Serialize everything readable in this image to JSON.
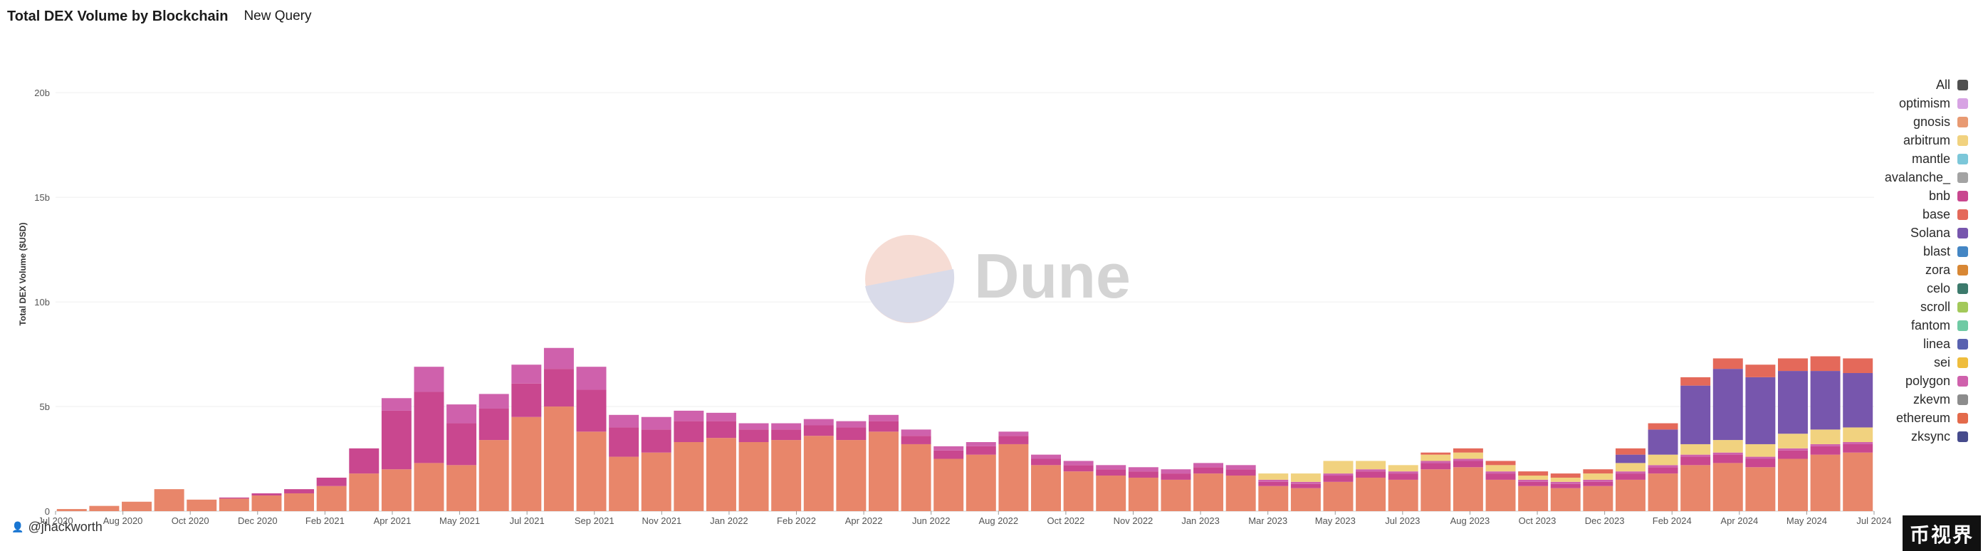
{
  "header": {
    "title": "Total DEX Volume by Blockchain",
    "query_name": "New Query"
  },
  "watermark": {
    "text": "Dune"
  },
  "author": {
    "handle": "@jhackworth",
    "icon": "user-icon"
  },
  "corner_logo": {
    "text": "币视界"
  },
  "legend": {
    "items": [
      {
        "label": "All",
        "color": "#505050"
      },
      {
        "label": "optimism",
        "color": "#d7a3e3"
      },
      {
        "label": "gnosis",
        "color": "#e89a72"
      },
      {
        "label": "arbitrum",
        "color": "#f1d27f"
      },
      {
        "label": "mantle",
        "color": "#7cc7d9"
      },
      {
        "label": "avalanche_",
        "color": "#a3a3a3"
      },
      {
        "label": "bnb",
        "color": "#c9478f"
      },
      {
        "label": "base",
        "color": "#e4695a"
      },
      {
        "label": "Solana",
        "color": "#7756ad"
      },
      {
        "label": "blast",
        "color": "#4486c4"
      },
      {
        "label": "zora",
        "color": "#d88734"
      },
      {
        "label": "celo",
        "color": "#3c7a6c"
      },
      {
        "label": "scroll",
        "color": "#a3c95a"
      },
      {
        "label": "fantom",
        "color": "#6fcaa4"
      },
      {
        "label": "linea",
        "color": "#5962b0"
      },
      {
        "label": "sei",
        "color": "#efbd3d"
      },
      {
        "label": "polygon",
        "color": "#cf61ac"
      },
      {
        "label": "zkevm",
        "color": "#8c8c8c"
      },
      {
        "label": "ethereum",
        "color": "#e36a4b"
      },
      {
        "label": "zksync",
        "color": "#464b8c"
      }
    ]
  },
  "chart_data": {
    "type": "bar",
    "stacked": true,
    "title": "Total DEX Volume by Blockchain",
    "ylabel": "Total DEX Volume ($USD)",
    "xlabel": "",
    "ylim": [
      0,
      23000000000
    ],
    "y_ticks": [
      {
        "value": 0,
        "label": "0"
      },
      {
        "value": 5000000000,
        "label": "5b"
      },
      {
        "value": 10000000000,
        "label": "10b"
      },
      {
        "value": 15000000000,
        "label": "15b"
      },
      {
        "value": 20000000000,
        "label": "20b"
      }
    ],
    "x_ticks": [
      "Jul 2020",
      "Aug 2020",
      "Oct 2020",
      "Dec 2020",
      "Feb 2021",
      "Apr 2021",
      "May 2021",
      "Jul 2021",
      "Sep 2021",
      "Nov 2021",
      "Jan 2022",
      "Feb 2022",
      "Apr 2022",
      "Jun 2022",
      "Aug 2022",
      "Oct 2022",
      "Nov 2022",
      "Jan 2023",
      "Mar 2023",
      "May 2023",
      "Jul 2023",
      "Aug 2023",
      "Oct 2023",
      "Dec 2023",
      "Feb 2024",
      "Apr 2024",
      "May 2024",
      "Jul 2024"
    ],
    "grid": true,
    "legend_position": "right",
    "series": [
      {
        "name": "ethereum",
        "color": "#e8866a",
        "values": [
          0.1,
          0.25,
          0.45,
          1.05,
          0.55,
          0.6,
          0.75,
          0.85,
          1.2,
          1.8,
          2.0,
          2.3,
          2.2,
          3.4,
          4.5,
          5.0,
          3.8,
          2.6,
          2.8,
          3.3,
          3.5,
          3.3,
          3.4,
          3.6,
          3.4,
          3.8,
          3.2,
          2.5,
          2.7,
          3.2,
          2.2,
          1.9,
          1.7,
          1.6,
          1.5,
          1.8,
          1.7,
          1.2,
          1.1,
          1.4,
          1.6,
          1.5,
          2.0,
          2.1,
          1.5,
          1.2,
          1.1,
          1.2,
          1.5,
          1.8,
          2.2,
          2.3,
          2.1,
          2.5,
          2.7,
          2.8
        ]
      },
      {
        "name": "bnb",
        "color": "#c9478f",
        "values": [
          0,
          0,
          0,
          0,
          0,
          0.05,
          0.1,
          0.2,
          0.4,
          1.2,
          2.8,
          3.4,
          2.0,
          1.5,
          1.6,
          1.8,
          2.0,
          1.4,
          1.1,
          1.0,
          0.8,
          0.6,
          0.5,
          0.5,
          0.6,
          0.5,
          0.4,
          0.4,
          0.4,
          0.4,
          0.3,
          0.3,
          0.3,
          0.3,
          0.3,
          0.3,
          0.3,
          0.2,
          0.2,
          0.3,
          0.3,
          0.3,
          0.3,
          0.3,
          0.3,
          0.2,
          0.2,
          0.2,
          0.3,
          0.3,
          0.4,
          0.4,
          0.4,
          0.4,
          0.4,
          0.4
        ]
      },
      {
        "name": "polygon",
        "color": "#cf61ac",
        "values": [
          0,
          0,
          0,
          0,
          0,
          0,
          0,
          0,
          0,
          0,
          0.6,
          1.2,
          0.9,
          0.7,
          0.9,
          1.0,
          1.1,
          0.6,
          0.6,
          0.5,
          0.4,
          0.3,
          0.3,
          0.3,
          0.3,
          0.3,
          0.3,
          0.2,
          0.2,
          0.2,
          0.2,
          0.2,
          0.2,
          0.2,
          0.2,
          0.2,
          0.2,
          0.1,
          0.1,
          0.1,
          0.1,
          0.1,
          0.1,
          0.1,
          0.1,
          0.1,
          0.1,
          0.1,
          0.1,
          0.1,
          0.1,
          0.1,
          0.1,
          0.1,
          0.1,
          0.1
        ]
      },
      {
        "name": "arbitrum",
        "color": "#f1d27f",
        "values": [
          0,
          0,
          0,
          0,
          0,
          0,
          0,
          0,
          0,
          0,
          0,
          0,
          0,
          0,
          0,
          0,
          0,
          0,
          0,
          0,
          0,
          0,
          0,
          0,
          0,
          0,
          0,
          0,
          0,
          0,
          0,
          0,
          0,
          0,
          0,
          0,
          0,
          0.3,
          0.4,
          0.6,
          0.4,
          0.3,
          0.3,
          0.3,
          0.3,
          0.2,
          0.2,
          0.3,
          0.4,
          0.5,
          0.5,
          0.6,
          0.6,
          0.7,
          0.7,
          0.7
        ]
      },
      {
        "name": "Solana",
        "color": "#7756ad",
        "values": [
          0,
          0,
          0,
          0,
          0,
          0,
          0,
          0,
          0,
          0,
          0,
          0,
          0,
          0,
          0,
          0,
          0,
          0,
          0,
          0,
          0,
          0,
          0,
          0,
          0,
          0,
          0,
          0,
          0,
          0,
          0,
          0,
          0,
          0,
          0,
          0,
          0,
          0,
          0,
          0,
          0,
          0,
          0,
          0,
          0,
          0,
          0,
          0,
          0.4,
          1.2,
          2.8,
          3.4,
          3.2,
          3.0,
          2.8,
          2.6
        ]
      },
      {
        "name": "base",
        "color": "#e4695a",
        "values": [
          0,
          0,
          0,
          0,
          0,
          0,
          0,
          0,
          0,
          0,
          0,
          0,
          0,
          0,
          0,
          0,
          0,
          0,
          0,
          0,
          0,
          0,
          0,
          0,
          0,
          0,
          0,
          0,
          0,
          0,
          0,
          0,
          0,
          0,
          0,
          0,
          0,
          0,
          0,
          0,
          0,
          0,
          0.1,
          0.2,
          0.2,
          0.2,
          0.2,
          0.2,
          0.3,
          0.3,
          0.4,
          0.5,
          0.6,
          0.6,
          0.7,
          0.7
        ]
      }
    ]
  }
}
